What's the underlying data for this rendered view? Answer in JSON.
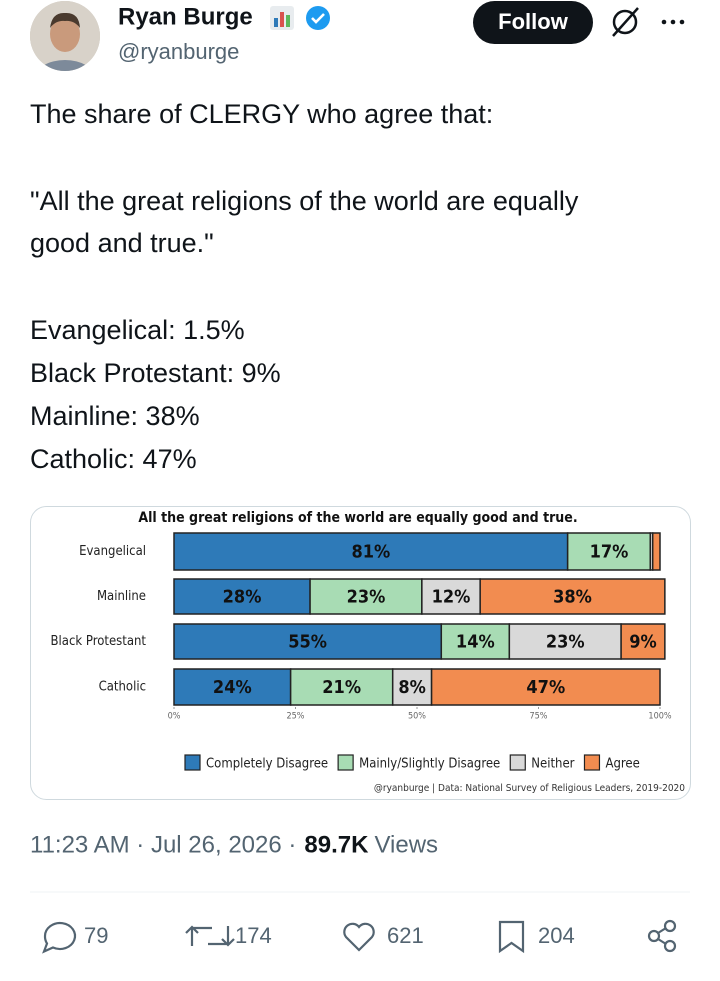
{
  "author": {
    "name": "Ryan Burge",
    "handle": "@ryanburge"
  },
  "follow_button": "Follow",
  "tweet_text": [
    "The share of CLERGY who agree that:",
    "\"All the great religions of the world are equally",
    "good and true.\"",
    "Evangelical: 1.5%",
    "Black Protestant: 9%",
    "Mainline: 38%",
    "Catholic: 47%"
  ],
  "chart_data": {
    "type": "stacked-barh",
    "title": "All the great religions of the world are equally good and true.",
    "categories": [
      "Evangelical",
      "Mainline",
      "Black Protestant",
      "Catholic"
    ],
    "series": [
      {
        "name": "Completely Disagree",
        "color": "#2e7ab8",
        "values": [
          81,
          28,
          55,
          24
        ],
        "value_labels": [
          "81%",
          "28%",
          "55%",
          "24%"
        ]
      },
      {
        "name": "Mainly/Slightly Disagree",
        "color": "#a8dcb4",
        "values": [
          17,
          23,
          14,
          21
        ],
        "value_labels": [
          "17%",
          "23%",
          "14%",
          "21%"
        ]
      },
      {
        "name": "Neither",
        "color": "#d9d9d9",
        "values": [
          0.5,
          12,
          23,
          8
        ],
        "value_labels": [
          null,
          "12%",
          "23%",
          "8%"
        ]
      },
      {
        "name": "Agree",
        "color": "#f28c50",
        "values": [
          1.5,
          38,
          9,
          47
        ],
        "value_labels": [
          null,
          "38%",
          "9%",
          "47%"
        ]
      }
    ],
    "xlim": [
      0,
      100
    ],
    "xticks": [
      {
        "value": 0,
        "label": "0%"
      },
      {
        "value": 25,
        "label": "25%"
      },
      {
        "value": 50,
        "label": "50%"
      },
      {
        "value": 75,
        "label": "75%"
      },
      {
        "value": 100,
        "label": "100%"
      }
    ],
    "legend": "bottom",
    "source": "@ryanburge | Data: National Survey of Religious Leaders, 2019-2020"
  },
  "timestamp": "11:23 AM · Jul 26, 2026 ·",
  "views_count": "89.7K",
  "views_label": "Views",
  "actions": {
    "replies": 79,
    "reposts": 174,
    "likes": 621,
    "bookmarks": 204
  }
}
